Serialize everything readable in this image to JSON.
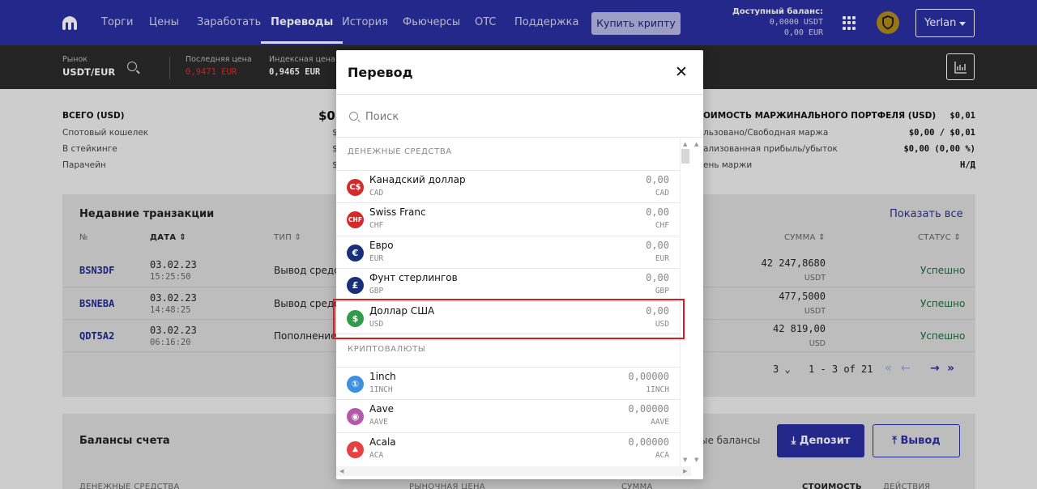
{
  "nav": {
    "items": [
      "Торги",
      "Цены",
      "Заработать",
      "Переводы",
      "История",
      "Фьючерсы",
      "OTC",
      "Поддержка"
    ],
    "buy_button": "Купить крипту",
    "balance_label": "Доступный баланс:",
    "balance_usdt": "0,0000 USDT",
    "balance_eur": "0,00 EUR",
    "user": "Yerlan"
  },
  "ticker": {
    "market_label": "Рынок",
    "market_value": "USDT/EUR",
    "last_price_label": "Последняя цена",
    "last_price_value": "0,9471 EUR",
    "index_price_label": "Индексная цена",
    "index_price_value": "0,9465 EUR"
  },
  "summary": {
    "left": [
      {
        "label": "ВСЕГО (USD)",
        "value": "$0,"
      },
      {
        "label": "Спотовый кошелек",
        "value": "$"
      },
      {
        "label": "В стейкинге",
        "value": "$"
      },
      {
        "label": "Парачейн",
        "value": "$"
      }
    ],
    "right": [
      {
        "label": "ОИМОСТЬ МАРЖИНАЛЬНОГО ПОРТФЕЛЯ (USD)",
        "value": "$0,01"
      },
      {
        "label": "льзовано/Свободная маржа",
        "value": "$0,00 / $0,01"
      },
      {
        "label": "ализованная прибыль/убыток",
        "value": "$0,00 (0,00 %)"
      },
      {
        "label": "ень маржи",
        "value": "Н/Д"
      }
    ]
  },
  "transactions": {
    "title": "Недавние транзакции",
    "show_all": "Показать все",
    "headers": {
      "id": "№",
      "date": "ДАТА",
      "type": "ТИП",
      "amount": "СУММА",
      "status": "СТАТУС"
    },
    "rows": [
      {
        "id": "BSN3DF",
        "date": "03.02.23",
        "time": "15:25:50",
        "type": "Вывод средст",
        "amount": "42 247,8680",
        "unit": "USDT",
        "status": "Успешно"
      },
      {
        "id": "BSNEBA",
        "date": "03.02.23",
        "time": "14:48:25",
        "type": "Вывод средс",
        "amount": "477,5000",
        "unit": "USDT",
        "status": "Успешно"
      },
      {
        "id": "QDT5A2",
        "date": "03.02.23",
        "time": "06:16:20",
        "type": "Пополнение",
        "amount": "42 819,00",
        "unit": "USD",
        "status": "Успешно"
      }
    ],
    "pagination": {
      "per_page": "3",
      "range": "1 - 3 of 21"
    }
  },
  "balances": {
    "title": "Балансы счета",
    "hidden_label": "ые балансы",
    "deposit": "Депозит",
    "withdraw": "Вывод",
    "headers": [
      "ДЕНЕЖНЫЕ СРЕДСТВА",
      "РЫНОЧНАЯ ЦЕНА",
      "СУММА",
      "СТОИМОСТЬ",
      "ДЕЙСТВИЯ"
    ]
  },
  "modal": {
    "title": "Перевод",
    "search_placeholder": "Поиск",
    "fiat_section": "ДЕНЕЖНЫЕ СРЕДСТВА",
    "crypto_section": "КРИПТОВАЛЮТЫ",
    "fiat": [
      {
        "name": "Канадский доллар",
        "code": "CAD",
        "amount": "0,00",
        "icon": "cad-icon",
        "glyph": "C$",
        "color": "#d42a2a"
      },
      {
        "name": "Swiss Franc",
        "code": "CHF",
        "amount": "0,00",
        "icon": "chf-icon",
        "glyph": "CHF",
        "color": "#d42a2a"
      },
      {
        "name": "Евро",
        "code": "EUR",
        "amount": "0,00",
        "icon": "euro-icon",
        "glyph": "€",
        "color": "#1a2f7a"
      },
      {
        "name": "Фунт стерлингов",
        "code": "GBP",
        "amount": "0,00",
        "icon": "pound-icon",
        "glyph": "£",
        "color": "#1a2f7a"
      },
      {
        "name": "Доллар США",
        "code": "USD",
        "amount": "0,00",
        "icon": "dollar-icon",
        "glyph": "$",
        "color": "#2e9c4a"
      }
    ],
    "crypto": [
      {
        "name": "1inch",
        "code": "1INCH",
        "amount": "0,00000",
        "icon": "1inch-icon",
        "glyph": "①",
        "color": "#3d8fe0"
      },
      {
        "name": "Aave",
        "code": "AAVE",
        "amount": "0,00000",
        "icon": "aave-icon",
        "glyph": "◉",
        "color": "#b25aa8"
      },
      {
        "name": "Acala",
        "code": "ACA",
        "amount": "0,00000",
        "icon": "acala-icon",
        "glyph": "▲",
        "color": "#e84141"
      }
    ]
  }
}
